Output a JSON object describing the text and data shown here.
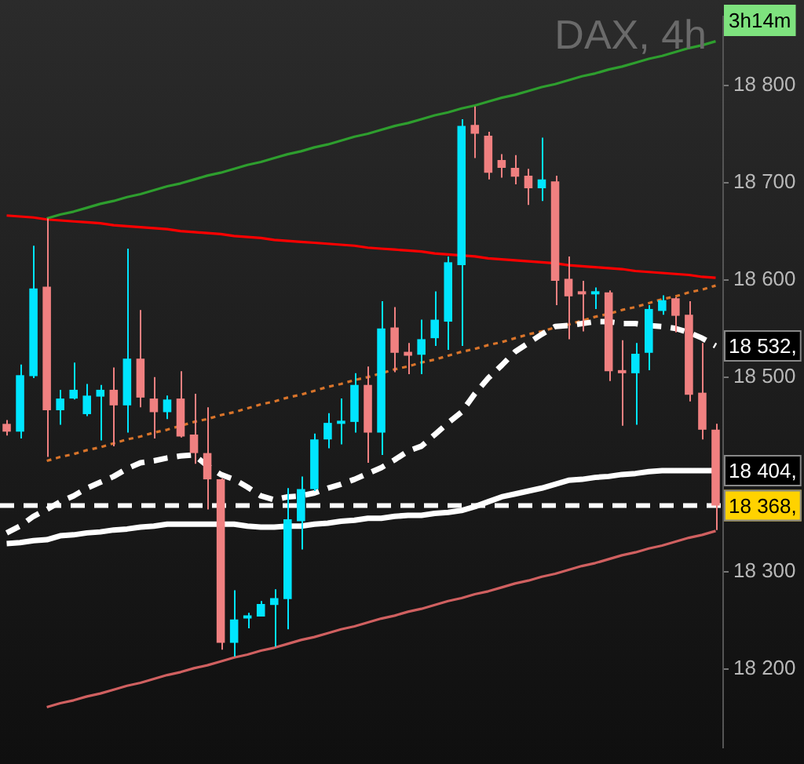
{
  "chart_data": {
    "type": "candlestick",
    "title": "DAX, 4h",
    "categories": [
      null,
      null,
      null,
      null,
      null,
      null,
      null,
      null,
      null,
      null,
      null,
      null,
      null,
      null,
      null,
      null,
      null,
      null,
      null,
      null,
      null,
      null,
      null,
      null,
      null,
      null,
      null,
      null,
      null,
      null,
      null,
      null,
      null,
      null,
      null,
      null,
      null,
      null,
      null,
      null,
      null,
      null,
      null,
      null,
      null,
      null,
      null,
      null,
      null,
      null,
      null,
      null,
      null,
      null
    ],
    "ohlc": [
      [
        18452,
        18456,
        18440,
        18444
      ],
      [
        18444,
        18513,
        18437,
        18502
      ],
      [
        18501,
        18635,
        18499,
        18591
      ],
      [
        18593,
        18663,
        18418,
        18466
      ],
      [
        18466,
        18487,
        18451,
        18478
      ],
      [
        18478,
        18515,
        18477,
        18487
      ],
      [
        18462,
        18493,
        18460,
        18481
      ],
      [
        18480,
        18492,
        18435,
        18487
      ],
      [
        18487,
        18510,
        18429,
        18471
      ],
      [
        18471,
        18632,
        18443,
        18519
      ],
      [
        18519,
        18569,
        18469,
        18479
      ],
      [
        18478,
        18500,
        18437,
        18464
      ],
      [
        18464,
        18481,
        18457,
        18477
      ],
      [
        18478,
        18506,
        18438,
        18439
      ],
      [
        18441,
        18483,
        18411,
        18422
      ],
      [
        18422,
        18469,
        18364,
        18395
      ],
      [
        18395,
        18396,
        18220,
        18227
      ],
      [
        18227,
        18281,
        18213,
        18251
      ],
      [
        18252,
        18258,
        18242,
        18255
      ],
      [
        18254,
        18270,
        18254,
        18267
      ],
      [
        18266,
        18282,
        18223,
        18273
      ],
      [
        18272,
        18386,
        18241,
        18354
      ],
      [
        18352,
        18398,
        18323,
        18385
      ],
      [
        18385,
        18442,
        18383,
        18436
      ],
      [
        18436,
        18463,
        18427,
        18453
      ],
      [
        18452,
        18478,
        18431,
        18455
      ],
      [
        18454,
        18504,
        18443,
        18492
      ],
      [
        18492,
        18511,
        18412,
        18443
      ],
      [
        18443,
        18578,
        18420,
        18550
      ],
      [
        18551,
        18572,
        18505,
        18525
      ],
      [
        18526,
        18535,
        18503,
        18522
      ],
      [
        18523,
        18559,
        18503,
        18539
      ],
      [
        18540,
        18588,
        18532,
        18559
      ],
      [
        18557,
        18624,
        18528,
        18618
      ],
      [
        18615,
        18765,
        18532,
        18758
      ],
      [
        18759,
        18778,
        18725,
        18750
      ],
      [
        18748,
        18752,
        18703,
        18710
      ],
      [
        18723,
        18729,
        18705,
        18715
      ],
      [
        18715,
        18728,
        18698,
        18706
      ],
      [
        18707,
        18714,
        18677,
        18694
      ],
      [
        18694,
        18746,
        18681,
        18703
      ],
      [
        18701,
        18707,
        18574,
        18599
      ],
      [
        18601,
        18624,
        18539,
        18583
      ],
      [
        18586,
        18599,
        18547,
        18585
      ],
      [
        18585,
        18592,
        18570,
        18588
      ],
      [
        18587,
        18589,
        18496,
        18506
      ],
      [
        18507,
        18538,
        18450,
        18504
      ],
      [
        18504,
        18535,
        18451,
        18524
      ],
      [
        18525,
        18574,
        18507,
        18570
      ],
      [
        18568,
        18584,
        18564,
        18579
      ],
      [
        18581,
        18582,
        18546,
        18563
      ],
      [
        18564,
        18578,
        18475,
        18482
      ],
      [
        18484,
        18535,
        18436,
        18446
      ],
      [
        18446,
        18452,
        18343,
        18368
      ]
    ],
    "colors": [
      "#f08080",
      "#00e5ff",
      "#00e5ff",
      "#f08080",
      "#00e5ff",
      "#00e5ff",
      "#00e5ff",
      "#00e5ff",
      "#f08080",
      "#00e5ff",
      "#f08080",
      "#f08080",
      "#00e5ff",
      "#f08080",
      "#f08080",
      "#f08080",
      "#f08080",
      "#00e5ff",
      "#00e5ff",
      "#00e5ff",
      "#00e5ff",
      "#00e5ff",
      "#00e5ff",
      "#00e5ff",
      "#00e5ff",
      "#00e5ff",
      "#00e5ff",
      "#f08080",
      "#00e5ff",
      "#f08080",
      "#f08080",
      "#00e5ff",
      "#00e5ff",
      "#00e5ff",
      "#00e5ff",
      "#f08080",
      "#f08080",
      "#f08080",
      "#f08080",
      "#f08080",
      "#00e5ff",
      "#f08080",
      "#f08080",
      "#f08080",
      "#00e5ff",
      "#f08080",
      "#f08080",
      "#00e5ff",
      "#00e5ff",
      "#00e5ff",
      "#f08080",
      "#f08080",
      "#f08080",
      "#f08080"
    ],
    "series": [
      {
        "type": "line",
        "color": "#ffffff",
        "line_style": "dashed",
        "values": [
          18340,
          18347,
          18357,
          18364,
          18372,
          18378,
          18386,
          18392,
          18398,
          18406,
          18412,
          18414,
          18417,
          18419,
          18420,
          18409,
          18400,
          18395,
          18387,
          18378,
          18374,
          18377,
          18378,
          18381,
          18386,
          18390,
          18395,
          18401,
          18407,
          18415,
          18424,
          18429,
          18441,
          18453,
          18464,
          18483,
          18499,
          18512,
          18526,
          18535,
          18544,
          18552,
          18553,
          18555,
          18557,
          18557,
          18555,
          18555,
          18553,
          18552,
          18550,
          18546,
          18540,
          18532
        ]
      },
      {
        "type": "line",
        "color": "#ffffff",
        "line_style": "solid",
        "values": [
          18329,
          18330,
          18332,
          18333,
          18337,
          18338,
          18340,
          18341,
          18343,
          18344,
          18346,
          18347,
          18349,
          18349,
          18349,
          18349,
          18349,
          18349,
          18347,
          18346,
          18346,
          18347,
          18347,
          18349,
          18350,
          18352,
          18353,
          18355,
          18355,
          18357,
          18358,
          18358,
          18360,
          18361,
          18363,
          18367,
          18372,
          18377,
          18380,
          18383,
          18386,
          18390,
          18394,
          18395,
          18397,
          18398,
          18400,
          18401,
          18403,
          18404,
          18404,
          18404,
          18404,
          18404
        ]
      },
      {
        "type": "line",
        "color": "#2e9e2e",
        "line_style": "solid",
        "values": [
          null,
          null,
          null,
          18663,
          18667,
          18670,
          18674,
          18678,
          18681,
          18685,
          18688,
          18692,
          18696,
          18699,
          18703,
          18707,
          18710,
          18714,
          18718,
          18721,
          18725,
          18729,
          18732,
          18736,
          18739,
          18743,
          18747,
          18750,
          18754,
          18758,
          18761,
          18765,
          18769,
          18772,
          18776,
          18779,
          18783,
          18787,
          18790,
          18794,
          18798,
          18801,
          18805,
          18809,
          18812,
          18816,
          18819,
          18823,
          18827,
          18830,
          18834,
          18838,
          18841,
          18845
        ]
      },
      {
        "type": "line",
        "color": "#ff0000",
        "line_style": "solid",
        "values": [
          18666,
          18665,
          18664,
          18662,
          18661,
          18660,
          18659,
          18658,
          18656,
          18655,
          18654,
          18653,
          18652,
          18650,
          18649,
          18648,
          18647,
          18645,
          18644,
          18643,
          18641,
          18640,
          18639,
          18638,
          18637,
          18636,
          18635,
          18633,
          18632,
          18631,
          18630,
          18629,
          18627,
          18626,
          18625,
          18624,
          18622,
          18621,
          18620,
          18619,
          18618,
          18617,
          18615,
          18614,
          18613,
          18612,
          18611,
          18609,
          18608,
          18607,
          18606,
          18605,
          18603,
          18602
        ]
      },
      {
        "type": "line",
        "color": "#d9742a",
        "line_style": "dotted",
        "values": [
          null,
          null,
          null,
          18414,
          18418,
          18421,
          18425,
          18428,
          18432,
          18436,
          18439,
          18443,
          18446,
          18450,
          18454,
          18457,
          18461,
          18464,
          18468,
          18472,
          18475,
          18479,
          18482,
          18486,
          18490,
          18493,
          18497,
          18500,
          18504,
          18508,
          18511,
          18515,
          18518,
          18522,
          18526,
          18529,
          18533,
          18536,
          18540,
          18544,
          18547,
          18551,
          18554,
          18558,
          18562,
          18565,
          18569,
          18572,
          18576,
          18580,
          18583,
          18587,
          18590,
          18594
        ]
      },
      {
        "type": "line",
        "color": "#d06060",
        "line_style": "solid",
        "values": [
          null,
          null,
          null,
          18161,
          18165,
          18168,
          18172,
          18175,
          18179,
          18183,
          18186,
          18190,
          18194,
          18197,
          18201,
          18204,
          18208,
          18212,
          18215,
          18219,
          18222,
          18226,
          18230,
          18233,
          18237,
          18241,
          18244,
          18248,
          18252,
          18255,
          18259,
          18262,
          18266,
          18270,
          18273,
          18277,
          18280,
          18284,
          18288,
          18291,
          18295,
          18298,
          18302,
          18306,
          18309,
          18313,
          18317,
          18320,
          18324,
          18327,
          18331,
          18335,
          18338,
          18342
        ]
      }
    ],
    "ylim": [
      18120,
      18870
    ],
    "yticks": [
      {
        "value": 18200,
        "label": "18 200"
      },
      {
        "value": 18300,
        "label": "18 300"
      },
      {
        "value": 18500,
        "label": "18 500"
      },
      {
        "value": 18600,
        "label": "18 600"
      },
      {
        "value": 18700,
        "label": "18 700"
      },
      {
        "value": 18800,
        "label": "18 800"
      }
    ],
    "ref_lines": [
      {
        "axis": "y",
        "value": 18368,
        "label": "18 368,",
        "color": "#ffffff",
        "line_style": "dashed"
      }
    ],
    "annotations": [
      "3h14m",
      "18 532,",
      "18 404,"
    ],
    "tick_labels": "y",
    "marker": "none",
    "legend": false,
    "grid": false
  }
}
